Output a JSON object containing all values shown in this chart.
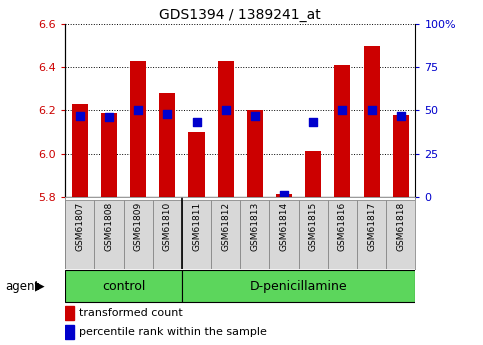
{
  "title": "GDS1394 / 1389241_at",
  "samples": [
    "GSM61807",
    "GSM61808",
    "GSM61809",
    "GSM61810",
    "GSM61811",
    "GSM61812",
    "GSM61813",
    "GSM61814",
    "GSM61815",
    "GSM61816",
    "GSM61817",
    "GSM61818"
  ],
  "bar_base": 5.8,
  "transformed_counts": [
    6.23,
    6.19,
    6.43,
    6.28,
    6.1,
    6.43,
    6.2,
    5.81,
    6.01,
    6.41,
    6.5,
    6.18
  ],
  "percentile_ranks": [
    47,
    46,
    50,
    48,
    43,
    50,
    47,
    1,
    43,
    50,
    50,
    47
  ],
  "ylim": [
    5.8,
    6.6
  ],
  "y2lim": [
    0,
    100
  ],
  "y2ticks": [
    0,
    25,
    50,
    75,
    100
  ],
  "y2ticklabels": [
    "0",
    "25",
    "50",
    "75",
    "100%"
  ],
  "yticks": [
    5.8,
    6.0,
    6.2,
    6.4,
    6.6
  ],
  "bar_color": "#cc0000",
  "dot_color": "#0000cc",
  "axis_label_color_left": "#cc0000",
  "axis_label_color_right": "#0000cc",
  "control_n": 4,
  "treatment_n": 8,
  "control_label": "control",
  "treatment_label": "D-penicillamine",
  "agent_label": "agent",
  "legend_bar_label": "transformed count",
  "legend_dot_label": "percentile rank within the sample",
  "bar_width": 0.55,
  "dot_size": 30,
  "fig_width": 4.83,
  "fig_height": 3.45,
  "dpi": 100
}
